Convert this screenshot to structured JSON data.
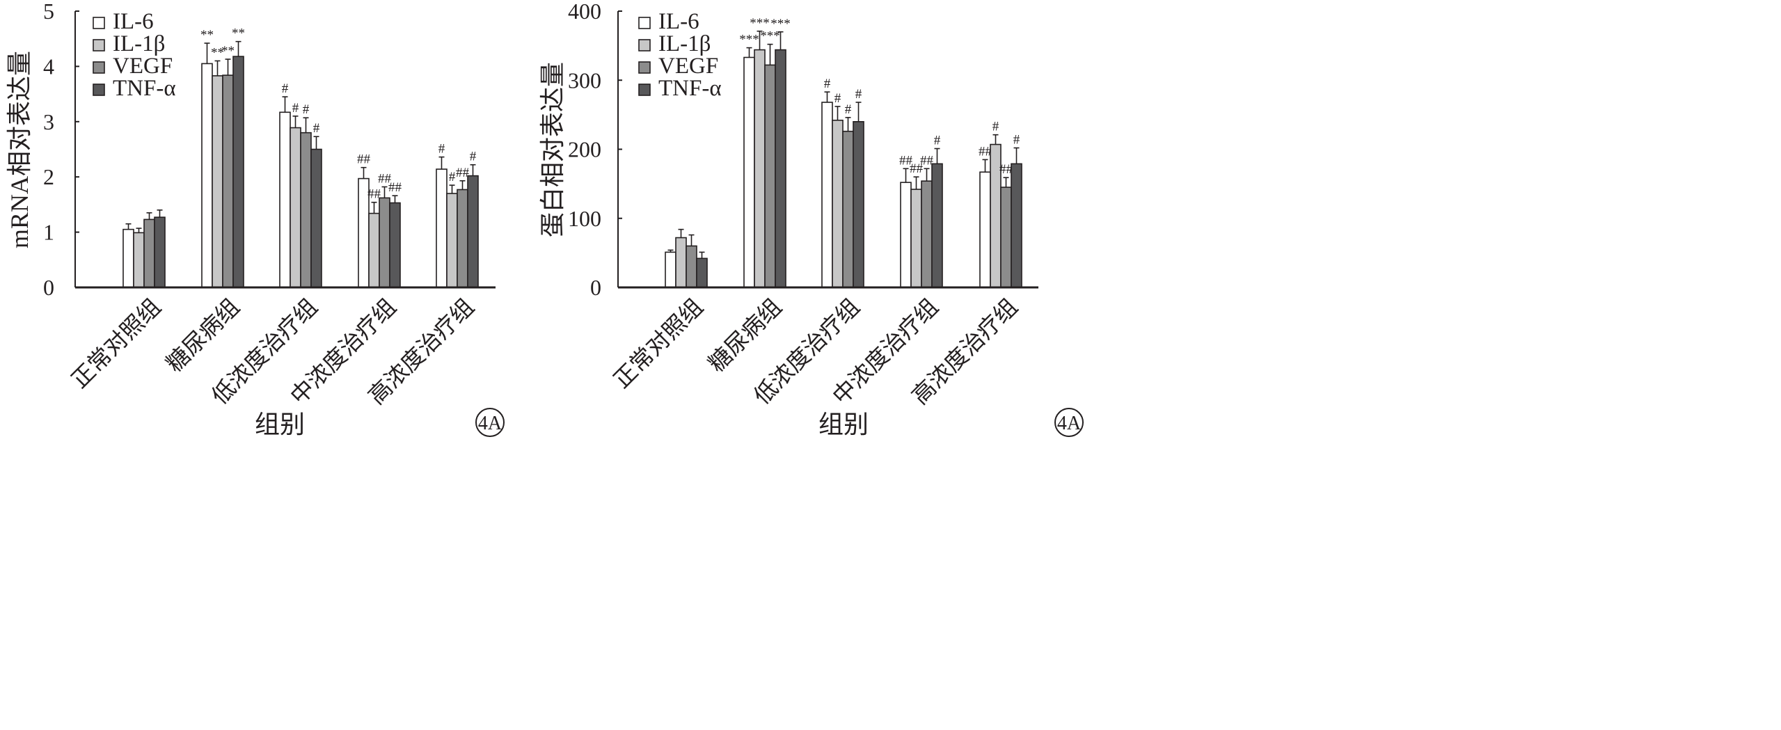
{
  "chart_data": [
    {
      "type": "bar",
      "ylabel": "mRNA相对表达量",
      "xlabel": "组别",
      "panel_label": "4A",
      "ylim": [
        0,
        5
      ],
      "yticks": [
        "0",
        "1",
        "2",
        "3",
        "4",
        "5"
      ],
      "legend_position": "top-left",
      "categories": [
        "正常对照组",
        "糖尿病组",
        "低浓度治疗组",
        "中浓度治疗组",
        "高浓度治疗组"
      ],
      "series": [
        {
          "name": "IL-6",
          "color": "#ffffff",
          "values": [
            1.05,
            4.05,
            3.17,
            1.97,
            2.14
          ],
          "errors": [
            0.1,
            0.37,
            0.28,
            0.2,
            0.22
          ],
          "marks": [
            "",
            "**",
            "#",
            "##",
            "#"
          ]
        },
        {
          "name": "IL-1β",
          "color": "#c7c7c7",
          "values": [
            0.99,
            3.83,
            2.89,
            1.34,
            1.7
          ],
          "errors": [
            0.08,
            0.27,
            0.21,
            0.2,
            0.15
          ],
          "marks": [
            "",
            "**",
            "#",
            "##",
            "#"
          ]
        },
        {
          "name": "VEGF",
          "color": "#8c8c8c",
          "values": [
            1.23,
            3.84,
            2.8,
            1.62,
            1.77
          ],
          "errors": [
            0.12,
            0.29,
            0.27,
            0.2,
            0.16
          ],
          "marks": [
            "",
            "**",
            "#",
            "##",
            "##"
          ]
        },
        {
          "name": "TNF-α",
          "color": "#58585a",
          "values": [
            1.27,
            4.18,
            2.5,
            1.53,
            2.02
          ],
          "errors": [
            0.13,
            0.27,
            0.23,
            0.13,
            0.2
          ],
          "marks": [
            "",
            "**",
            "#",
            "##",
            "#"
          ]
        }
      ]
    },
    {
      "type": "bar",
      "ylabel": "蛋白相对表达量",
      "xlabel": "组别",
      "panel_label": "4A",
      "ylim": [
        0,
        400
      ],
      "yticks": [
        "0",
        "100",
        "200",
        "300",
        "400"
      ],
      "legend_position": "top-left",
      "categories": [
        "正常对照组",
        "糖尿病组",
        "低浓度治疗组",
        "中浓度治疗组",
        "高浓度治疗组"
      ],
      "series": [
        {
          "name": "IL-6",
          "color": "#ffffff",
          "values": [
            51,
            333,
            268,
            152,
            167
          ],
          "errors": [
            3,
            14,
            15,
            20,
            18
          ],
          "marks": [
            "",
            "***",
            "#",
            "##",
            "##"
          ]
        },
        {
          "name": "IL-1β",
          "color": "#c7c7c7",
          "values": [
            72,
            344,
            242,
            142,
            207
          ],
          "errors": [
            12,
            27,
            20,
            18,
            14
          ],
          "marks": [
            "",
            "***",
            "#",
            "##",
            "#"
          ]
        },
        {
          "name": "VEGF",
          "color": "#8c8c8c",
          "values": [
            60,
            322,
            226,
            154,
            145
          ],
          "errors": [
            16,
            30,
            20,
            18,
            14
          ],
          "marks": [
            "",
            "***",
            "#",
            "##",
            "##"
          ]
        },
        {
          "name": "TNF-α",
          "color": "#58585a",
          "values": [
            42,
            344,
            240,
            179,
            179
          ],
          "errors": [
            9,
            26,
            28,
            22,
            23
          ],
          "marks": [
            "",
            "***",
            "#",
            "#",
            "#"
          ]
        }
      ]
    }
  ]
}
